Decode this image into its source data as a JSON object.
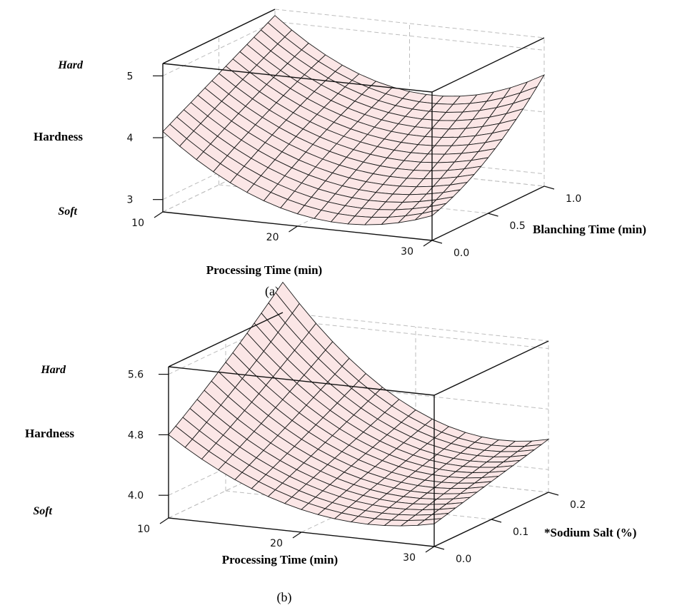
{
  "chart_data": [
    {
      "type": "surface",
      "panel_label": "(a)",
      "z_axis": {
        "label": "Hardness",
        "high_label": "Hard",
        "low_label": "Soft",
        "ticks": [
          "3",
          "4",
          "5"
        ],
        "range": [
          2.8,
          5.2
        ]
      },
      "x_axis": {
        "label": "Processing Time (min)",
        "ticks": [
          "10",
          "20",
          "30"
        ],
        "range": [
          10,
          30
        ]
      },
      "y_axis": {
        "label": "Blanching Time (min)",
        "ticks": [
          "0.0",
          "0.5",
          "1.0"
        ],
        "range": [
          0,
          1
        ]
      },
      "surface": {
        "x": [
          10,
          20,
          30
        ],
        "y": [
          0,
          0.5,
          1.0
        ],
        "z": [
          [
            4.1,
            3.0,
            3.2
          ],
          [
            4.6,
            3.6,
            3.7
          ],
          [
            5.1,
            4.1,
            4.6
          ]
        ],
        "grid_resolution": 16
      }
    },
    {
      "type": "surface",
      "panel_label": "(b)",
      "z_axis": {
        "label": "Hardness",
        "high_label": "Hard",
        "low_label": "Soft",
        "ticks": [
          "4.0",
          "4.8",
          "5.6"
        ],
        "range": [
          3.7,
          5.7
        ]
      },
      "x_axis": {
        "label": "Processing Time (min)",
        "ticks": [
          "10",
          "20",
          "30"
        ],
        "range": [
          10,
          30
        ]
      },
      "y_axis": {
        "label": "*Sodium Salt (%)",
        "ticks": [
          "0.0",
          "0.1",
          "0.2"
        ],
        "range": [
          0,
          0.2
        ]
      },
      "surface": {
        "x": [
          10,
          20,
          30
        ],
        "y": [
          0,
          0.1,
          0.2
        ],
        "z": [
          [
            4.8,
            4.0,
            4.0
          ],
          [
            5.4,
            4.3,
            4.2
          ],
          [
            6.1,
            4.6,
            4.4
          ]
        ],
        "grid_resolution": 16
      }
    }
  ]
}
